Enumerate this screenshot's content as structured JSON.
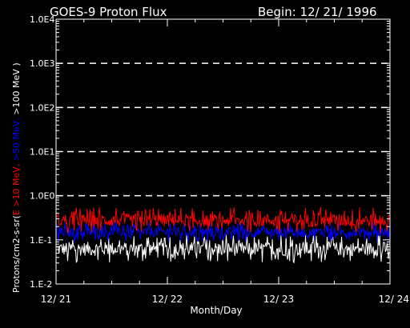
{
  "chart_data": {
    "type": "line",
    "title": "GOES-9 Proton Flux",
    "begin_label": "Begin: 12/ 21/ 1996",
    "xlabel": "Month/Day",
    "ylabel_parts": [
      {
        "text": "Protons/cm2-s-sr(",
        "color": "#ffffff"
      },
      {
        "text": "E >10 MeV,",
        "color": "#ff0000"
      },
      {
        "text": " >50 MeV,",
        "color": "#0000ff"
      },
      {
        "text": " >100 MeV )",
        "color": "#ffffff"
      }
    ],
    "y_scale": "log",
    "ylim": [
      0.01,
      10000
    ],
    "y_ticks": [
      {
        "value": 10000,
        "label": "1.0E4"
      },
      {
        "value": 1000,
        "label": "1.0E3"
      },
      {
        "value": 100,
        "label": "1.0E2"
      },
      {
        "value": 10,
        "label": "1.0E1"
      },
      {
        "value": 1,
        "label": "1.0E0"
      },
      {
        "value": 0.1,
        "label": "1.E-1"
      },
      {
        "value": 0.01,
        "label": "1.E-2"
      }
    ],
    "dashed_gridlines_at": [
      1,
      10,
      100,
      1000
    ],
    "x_ticks": [
      "12/ 21",
      "12/ 22",
      "12/ 23",
      "12/ 24"
    ],
    "series": [
      {
        "label": "E >10 MeV",
        "color": "#ff0000",
        "typical_range": [
          0.14,
          0.55
        ]
      },
      {
        "label": ">50 MeV",
        "color": "#0000ff",
        "typical_range": [
          0.09,
          0.25
        ]
      },
      {
        "label": ">100 MeV",
        "color": "#ffffff",
        "typical_range": [
          0.03,
          0.13
        ]
      }
    ]
  }
}
